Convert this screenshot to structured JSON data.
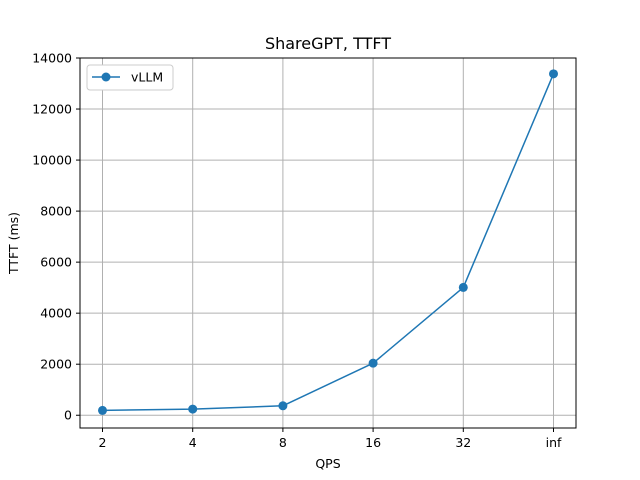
{
  "chart_data": {
    "type": "line",
    "title": "ShareGPT, TTFT",
    "xlabel": "QPS",
    "ylabel": "TTFT (ms)",
    "categories": [
      "2",
      "4",
      "8",
      "16",
      "32",
      "inf"
    ],
    "series": [
      {
        "name": "vLLM",
        "values": [
          190,
          240,
          370,
          2040,
          5010,
          13380
        ],
        "color": "#1f77b4",
        "marker": "circle"
      }
    ],
    "ylim": [
      -500,
      14000
    ],
    "yticks": [
      0,
      2000,
      4000,
      6000,
      8000,
      10000,
      12000,
      14000
    ],
    "grid": true,
    "legend": "top-left"
  }
}
